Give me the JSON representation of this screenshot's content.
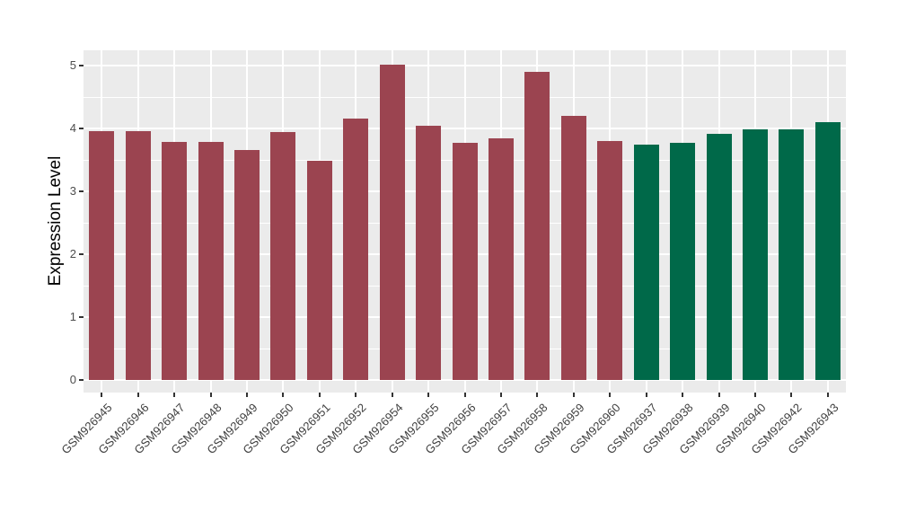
{
  "chart_data": {
    "type": "bar",
    "title": "",
    "xlabel": "",
    "ylabel": "Expression Level",
    "ylim": [
      0,
      5.25
    ],
    "yticks": [
      0,
      1,
      2,
      3,
      4,
      5
    ],
    "grid": "on",
    "legend": "none",
    "panel_background": "#EBEBEB",
    "gridline_color": "#ffffff",
    "categories": [
      "GSM926945",
      "GSM926946",
      "GSM926947",
      "GSM926948",
      "GSM926949",
      "GSM926950",
      "GSM926951",
      "GSM926952",
      "GSM926954",
      "GSM926955",
      "GSM926956",
      "GSM926957",
      "GSM926958",
      "GSM926959",
      "GSM926960",
      "GSM926937",
      "GSM926938",
      "GSM926939",
      "GSM926940",
      "GSM926942",
      "GSM926943"
    ],
    "values": [
      3.96,
      3.96,
      3.79,
      3.79,
      3.66,
      3.94,
      3.48,
      4.16,
      5.02,
      4.04,
      3.77,
      3.84,
      4.9,
      4.2,
      3.8,
      3.75,
      3.77,
      3.92,
      3.99,
      3.98,
      4.1
    ],
    "bar_colors": [
      "#9B4450",
      "#9B4450",
      "#9B4450",
      "#9B4450",
      "#9B4450",
      "#9B4450",
      "#9B4450",
      "#9B4450",
      "#9B4450",
      "#9B4450",
      "#9B4450",
      "#9B4450",
      "#9B4450",
      "#9B4450",
      "#9B4450",
      "#006949",
      "#006949",
      "#006949",
      "#006949",
      "#006949",
      "#006949"
    ],
    "group_colors": {
      "red_group": "#9B4450",
      "green_group": "#006949"
    }
  }
}
